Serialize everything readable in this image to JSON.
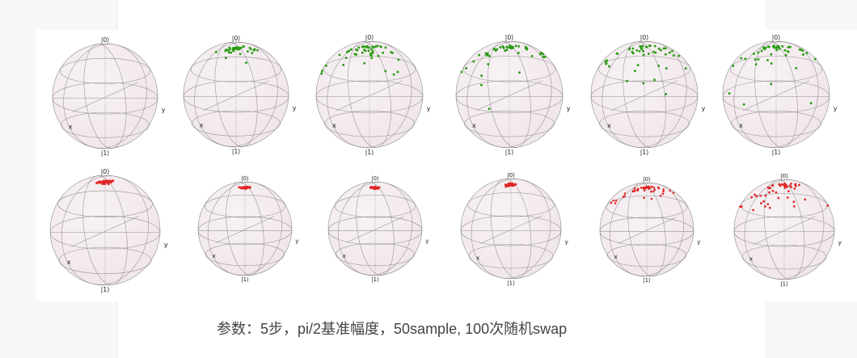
{
  "caption": "参数：5步，pi/2基准幅度，50sample, 100次随机swap",
  "sphere_labels": {
    "top": "|0⟩",
    "bottom": "|1⟩",
    "x": "x",
    "y": "y"
  },
  "colors": {
    "sphere_fill": "#f0e6ea",
    "sphere_edge": "#8d8d8d",
    "row1_points": "#2a9d14",
    "row2_points": "#e02424"
  },
  "rows": [
    {
      "name": "row-1",
      "point_color": "row1_points",
      "spheres": [
        {
          "spread": 0.0,
          "count": 0
        },
        {
          "spread": 0.45,
          "count": 50
        },
        {
          "spread": 0.9,
          "count": 50
        },
        {
          "spread": 1.0,
          "count": 50
        },
        {
          "spread": 1.05,
          "count": 50
        },
        {
          "spread": 1.15,
          "count": 50
        }
      ]
    },
    {
      "name": "row-2",
      "point_color": "row2_points",
      "spheres": [
        {
          "spread": 0.12,
          "count": 50
        },
        {
          "spread": 0.1,
          "count": 50
        },
        {
          "spread": 0.1,
          "count": 50
        },
        {
          "spread": 0.12,
          "count": 50
        },
        {
          "spread": 0.7,
          "count": 50
        },
        {
          "spread": 0.95,
          "count": 50
        }
      ]
    }
  ]
}
